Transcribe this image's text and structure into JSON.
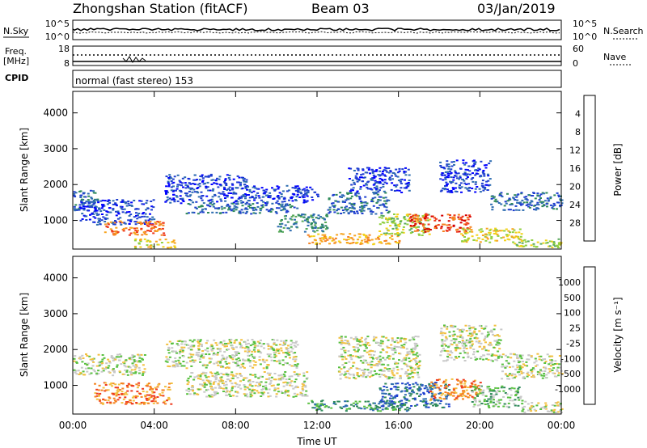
{
  "header": {
    "station": "Zhongshan Station (fitACF)",
    "beam": "Beam 03",
    "date": "03/Jan/2019"
  },
  "strips": {
    "nsky_label": "N.Sky",
    "nsearch_label": "N.Search",
    "nsky_ticks": [
      "10^5",
      "10^0"
    ],
    "nsearch_ticks": [
      "10^5",
      "10^0"
    ],
    "freq_label_line1": "Freq.",
    "freq_label_line2": "[MHz]",
    "freq_ticks": [
      "18",
      "8"
    ],
    "nave_label": "Nave",
    "nave_ticks": [
      "60",
      "0"
    ],
    "cpid_label": "CPID",
    "cpid_value": "normal (fast stereo) 153"
  },
  "chart_data": [
    {
      "type": "heatmap",
      "panel": "power",
      "ylabel": "Slant Range [km]",
      "xlabel": "",
      "xticks": [
        "00:00",
        "04:00",
        "08:00",
        "12:00",
        "16:00",
        "20:00",
        "00:00"
      ],
      "yticks": [
        "1000",
        "2000",
        "3000",
        "4000"
      ],
      "ylim": [
        200,
        4600
      ],
      "xlim_hours": [
        0,
        24
      ],
      "colorbar": {
        "label": "Power [dB]",
        "ticks": [
          "4",
          "8",
          "12",
          "16",
          "20",
          "24",
          "28"
        ],
        "colors": [
          "#0000ff",
          "#1f3fcf",
          "#2e6db0",
          "#2f8a5a",
          "#58a95a",
          "#8fcf3f",
          "#f2d21a",
          "#f7a51f",
          "#f58220",
          "#ee3a1e",
          "#d40000"
        ]
      },
      "regions": [
        {
          "t0": 0.0,
          "t1": 1.2,
          "r0": 1300,
          "r1": 1900,
          "lvl": 2
        },
        {
          "t0": 0.3,
          "t1": 4.0,
          "r0": 900,
          "r1": 1600,
          "lvl": 1
        },
        {
          "t0": 1.5,
          "t1": 4.5,
          "r0": 600,
          "r1": 1000,
          "lvl": 8
        },
        {
          "t0": 3.0,
          "t1": 5.0,
          "r0": 250,
          "r1": 500,
          "lvl": 6
        },
        {
          "t0": 4.5,
          "t1": 8.5,
          "r0": 1500,
          "r1": 2300,
          "lvl": 1
        },
        {
          "t0": 5.5,
          "t1": 11.0,
          "r0": 1200,
          "r1": 1500,
          "lvl": 2
        },
        {
          "t0": 8.5,
          "t1": 12.0,
          "r0": 1500,
          "r1": 2000,
          "lvl": 1
        },
        {
          "t0": 10.0,
          "t1": 12.5,
          "r0": 700,
          "r1": 1200,
          "lvl": 3
        },
        {
          "t0": 11.5,
          "t1": 16.0,
          "r0": 350,
          "r1": 650,
          "lvl": 7
        },
        {
          "t0": 12.5,
          "t1": 15.5,
          "r0": 1200,
          "r1": 1800,
          "lvl": 2
        },
        {
          "t0": 13.5,
          "t1": 16.5,
          "r0": 1800,
          "r1": 2500,
          "lvl": 1
        },
        {
          "t0": 15.0,
          "t1": 17.5,
          "r0": 600,
          "r1": 1200,
          "lvl": 5
        },
        {
          "t0": 16.5,
          "t1": 19.5,
          "r0": 700,
          "r1": 1200,
          "lvl": 9
        },
        {
          "t0": 18.0,
          "t1": 20.5,
          "r0": 1800,
          "r1": 2700,
          "lvl": 1
        },
        {
          "t0": 19.0,
          "t1": 22.0,
          "r0": 400,
          "r1": 800,
          "lvl": 6
        },
        {
          "t0": 20.5,
          "t1": 24.0,
          "r0": 1300,
          "r1": 1800,
          "lvl": 2
        },
        {
          "t0": 21.5,
          "t1": 24.0,
          "r0": 250,
          "r1": 500,
          "lvl": 5
        }
      ]
    },
    {
      "type": "heatmap",
      "panel": "velocity",
      "ylabel": "Slant Range [km]",
      "xlabel": "Time UT",
      "xticks": [
        "00:00",
        "04:00",
        "08:00",
        "12:00",
        "16:00",
        "20:00",
        "00:00"
      ],
      "yticks": [
        "1000",
        "2000",
        "3000",
        "4000"
      ],
      "ylim": [
        200,
        4600
      ],
      "xlim_hours": [
        0,
        24
      ],
      "colorbar": {
        "label": "Velocity [m s⁻¹]",
        "ticks": [
          "1000",
          "500",
          "100",
          "25",
          "-25",
          "-100",
          "-500",
          "-1000"
        ],
        "colors": [
          "#1f3fcf",
          "#2e6db0",
          "#2f8a5a",
          "#58c040",
          "#c8c8c8",
          "#f2c040",
          "#f58220",
          "#ee3a1e",
          "#d40000"
        ]
      },
      "regions": [
        {
          "t0": 0.0,
          "t1": 3.5,
          "r0": 1300,
          "r1": 1900,
          "lvl": 4
        },
        {
          "t0": 1.0,
          "t1": 4.8,
          "r0": 500,
          "r1": 1100,
          "lvl": 6
        },
        {
          "t0": 4.5,
          "t1": 11.0,
          "r0": 1500,
          "r1": 2300,
          "lvl": 4
        },
        {
          "t0": 5.5,
          "t1": 11.5,
          "r0": 700,
          "r1": 1400,
          "lvl": 4
        },
        {
          "t0": 11.5,
          "t1": 16.5,
          "r0": 300,
          "r1": 600,
          "lvl": 2
        },
        {
          "t0": 13.0,
          "t1": 17.0,
          "r0": 1200,
          "r1": 2400,
          "lvl": 4
        },
        {
          "t0": 15.0,
          "t1": 18.5,
          "r0": 400,
          "r1": 1100,
          "lvl": 1
        },
        {
          "t0": 17.5,
          "t1": 20.0,
          "r0": 600,
          "r1": 1200,
          "lvl": 6
        },
        {
          "t0": 18.0,
          "t1": 21.0,
          "r0": 1700,
          "r1": 2700,
          "lvl": 4
        },
        {
          "t0": 19.5,
          "t1": 22.0,
          "r0": 400,
          "r1": 1000,
          "lvl": 3
        },
        {
          "t0": 21.0,
          "t1": 24.0,
          "r0": 1200,
          "r1": 1900,
          "lvl": 4
        },
        {
          "t0": 22.0,
          "t1": 24.0,
          "r0": 250,
          "r1": 600,
          "lvl": 4
        }
      ]
    }
  ]
}
